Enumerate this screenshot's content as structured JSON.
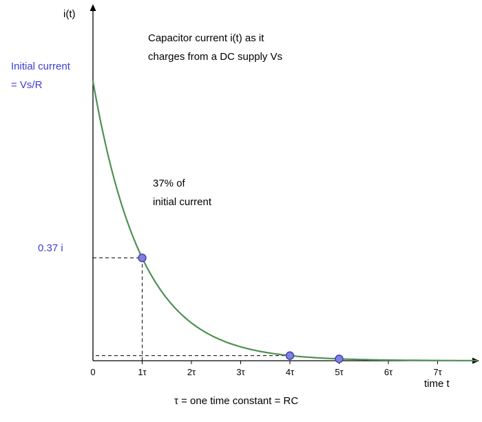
{
  "labels": {
    "y_axis": "i(t)",
    "title_line1": "Capacitor current i(t) as it",
    "title_line2": "charges from a DC supply Vs",
    "initial_line1": "Initial current",
    "initial_line2": "= Vs/R",
    "annotation_line1": "37% of",
    "annotation_line2": "initial current",
    "y_value": "0.37 i",
    "x_axis": "time t",
    "caption": "τ = one time constant = RC"
  },
  "chart_data": {
    "type": "line",
    "title": "Capacitor current i(t) as it charges from a DC supply Vs",
    "xlabel": "time t",
    "ylabel": "i(t)",
    "caption": "τ = one time constant = RC",
    "x_ticks": [
      "0",
      "1τ",
      "2τ",
      "3τ",
      "4τ",
      "5τ",
      "6τ",
      "7τ"
    ],
    "x_range_tau": [
      0,
      7.8
    ],
    "initial_value_label": "Initial current = Vs/R",
    "decay_fraction_at_1tau": 0.37,
    "marked_points_tau": [
      1,
      4,
      5
    ],
    "function": "i(t) = (Vs/R)·e^(−t/τ)",
    "grid": false,
    "curve_color": "#4e9050",
    "point_color": "#8080e0",
    "point_border_color": "#3b3bb0",
    "accent_text_color": "#3d3dd1"
  }
}
